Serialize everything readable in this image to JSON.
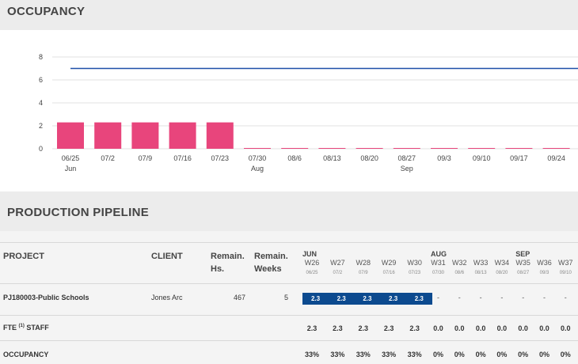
{
  "occupancy": {
    "title": "OCCUPANCY",
    "colors": {
      "bar": "#e8457c",
      "line": "#1e4fa8",
      "grid": "#e0e0e0"
    },
    "chart_data": {
      "type": "bar",
      "categories": [
        "06/25",
        "07/2",
        "07/9",
        "07/16",
        "07/23",
        "07/30",
        "08/6",
        "08/13",
        "08/20",
        "08/27",
        "09/3",
        "09/10",
        "09/17",
        "09/24"
      ],
      "month_labels": [
        "Jun",
        "",
        "",
        "",
        "",
        "Aug",
        "",
        "",
        "",
        "Sep",
        "",
        "",
        "",
        ""
      ],
      "values": [
        2.3,
        2.3,
        2.3,
        2.3,
        2.3,
        0,
        0,
        0,
        0,
        0,
        0,
        0,
        0,
        0
      ],
      "reference_line": 7,
      "yticks": [
        0,
        2,
        4,
        6,
        8
      ],
      "ylim": [
        0,
        8
      ],
      "grid": true
    }
  },
  "pipeline": {
    "title": "PRODUCTION PIPELINE",
    "columns": {
      "project": "PROJECT",
      "client": "CLIENT",
      "remain_hs": "Remain. Hs.",
      "remain_weeks": "Remain. Weeks"
    },
    "months": [
      {
        "label": "JUN",
        "start": 0
      },
      {
        "label": "AUG",
        "start": 5
      },
      {
        "label": "SEP",
        "start": 9
      }
    ],
    "weeks": [
      {
        "label": "W26",
        "date": "06/25"
      },
      {
        "label": "W27",
        "date": "07/2"
      },
      {
        "label": "W28",
        "date": "07/9"
      },
      {
        "label": "W29",
        "date": "07/16"
      },
      {
        "label": "W30",
        "date": "07/23"
      },
      {
        "label": "W31",
        "date": "07/30"
      },
      {
        "label": "W32",
        "date": "08/6"
      },
      {
        "label": "W33",
        "date": "08/13"
      },
      {
        "label": "W34",
        "date": "08/20"
      },
      {
        "label": "W35",
        "date": "08/27"
      },
      {
        "label": "W36",
        "date": "09/3"
      },
      {
        "label": "W37",
        "date": "09/10"
      }
    ],
    "rows": [
      {
        "project": "PJ180003-Public Schools",
        "client": "Jones Arc",
        "remain_hs": "467",
        "remain_weeks": "5",
        "weeks": [
          "2.3",
          "2.3",
          "2.3",
          "2.3",
          "2.3",
          "-",
          "-",
          "-",
          "-",
          "-",
          "-",
          "-"
        ]
      }
    ],
    "fte": {
      "label": "FTE",
      "sup": "(1)",
      "suffix": "STAFF",
      "values": [
        "2.3",
        "2.3",
        "2.3",
        "2.3",
        "2.3",
        "0.0",
        "0.0",
        "0.0",
        "0.0",
        "0.0",
        "0.0",
        "0.0"
      ]
    },
    "occupancy": {
      "label": "OCCUPANCY",
      "values": [
        "33%",
        "33%",
        "33%",
        "33%",
        "33%",
        "0%",
        "0%",
        "0%",
        "0%",
        "0%",
        "0%",
        "0%"
      ]
    }
  }
}
